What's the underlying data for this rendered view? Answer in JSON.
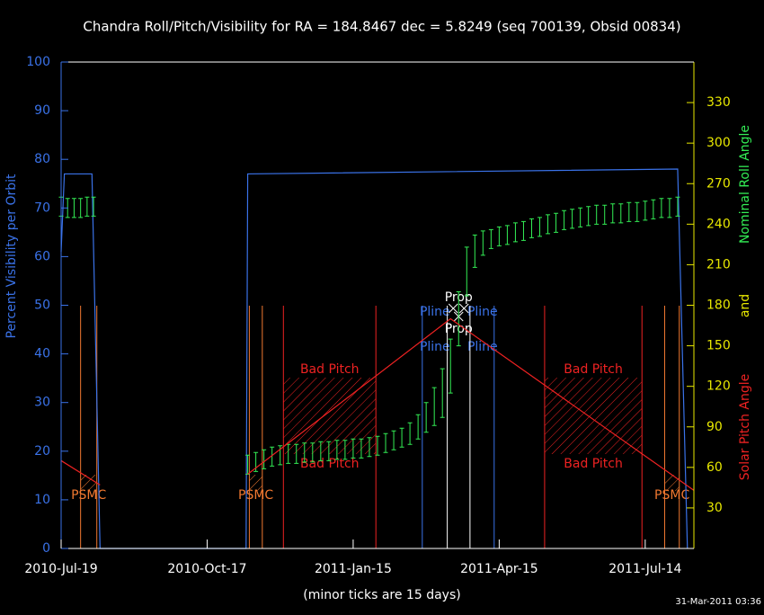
{
  "chart_data": {
    "type": "line",
    "title": "Chandra Roll/Pitch/Visibility for RA = 184.8467 dec = 5.8249 (seq 700139, Obsid 00834)",
    "ylabel": "Percent Visibility per Orbit",
    "y2label_joiner": "and",
    "note": "(minor ticks are 15 days)",
    "timestamp": "31-Mar-2011 03:36",
    "xlim": [
      0,
      390
    ],
    "xticks": [
      {
        "value": 0,
        "label": "2010-Jul-19"
      },
      {
        "value": 90,
        "label": "2010-Oct-17"
      },
      {
        "value": 180,
        "label": "2011-Jan-15"
      },
      {
        "value": 270,
        "label": "2011-Apr-15"
      },
      {
        "value": 360,
        "label": "2011-Jul-14"
      }
    ],
    "ylim": [
      0,
      100
    ],
    "yticks": [
      0,
      10,
      20,
      30,
      40,
      50,
      60,
      70,
      80,
      90,
      100
    ],
    "y2lim": [
      0,
      360
    ],
    "y2ticks": [
      30,
      60,
      90,
      120,
      150,
      180,
      210,
      240,
      270,
      300,
      330
    ],
    "series": [
      {
        "name": "Percent Visibility per Orbit",
        "color": "#3a72e8",
        "axis": "y",
        "x": [
          0,
          2,
          19,
          24,
          114,
          115,
          380,
          386
        ],
        "values": [
          61,
          77,
          77,
          0,
          0,
          77,
          78,
          0
        ]
      },
      {
        "name": "Nominal Roll Angle",
        "color": "#33ee55",
        "axis": "y2",
        "x": [
          0,
          4,
          8,
          12,
          16,
          20,
          115,
          120,
          125,
          130,
          135,
          140,
          145,
          150,
          155,
          160,
          165,
          170,
          175,
          180,
          185,
          190,
          195,
          200,
          205,
          210,
          215,
          220,
          225,
          230,
          235,
          240,
          245,
          250,
          255,
          260,
          265,
          270,
          275,
          280,
          285,
          290,
          295,
          300,
          305,
          310,
          315,
          320,
          325,
          330,
          335,
          340,
          345,
          350,
          355,
          360,
          365,
          370,
          375,
          380
        ],
        "values": [
          253,
          252,
          252,
          252,
          253,
          253,
          62,
          64,
          66,
          68,
          69,
          70,
          70,
          71,
          71,
          72,
          72,
          73,
          73,
          74,
          74,
          75,
          76,
          78,
          80,
          82,
          85,
          90,
          97,
          105,
          115,
          135,
          170,
          205,
          220,
          226,
          229,
          231,
          232,
          234,
          235,
          237,
          238,
          240,
          241,
          243,
          244,
          245,
          246,
          247,
          247,
          248,
          248,
          249,
          249,
          250,
          251,
          252,
          252,
          253
        ],
        "errors": [
          7,
          7,
          7,
          7,
          7,
          7,
          7,
          7,
          7,
          7,
          7,
          7,
          7,
          7,
          7,
          7,
          7,
          7,
          7,
          7,
          7,
          7,
          7,
          7,
          7,
          7,
          8,
          9,
          11,
          14,
          18,
          20,
          20,
          18,
          12,
          9,
          7,
          7,
          7,
          7,
          7,
          7,
          7,
          7,
          7,
          7,
          7,
          7,
          7,
          7,
          7,
          7,
          7,
          7,
          7,
          7,
          7,
          7,
          7,
          7
        ]
      },
      {
        "name": "Solar Pitch Angle",
        "color": "#ee2222",
        "axis": "y2",
        "x": [
          0,
          24,
          null,
          115,
          240,
          390
        ],
        "values": [
          65,
          47,
          null,
          55,
          170,
          43
        ]
      }
    ],
    "zones": [
      {
        "label": "PSMC",
        "color": "#f07830",
        "x": [
          12,
          22
        ],
        "hatch": true
      },
      {
        "label": "PSMC",
        "color": "#f07830",
        "x": [
          116,
          124
        ],
        "hatch": true
      },
      {
        "label": "Bad Pitch",
        "color": "#ee2222",
        "x": [
          137,
          194
        ],
        "hatch": true
      },
      {
        "label": "Pline",
        "color": "#3a72e8",
        "x": [
          222.6,
          266.9
        ],
        "hatch": false
      },
      {
        "label": "Prop",
        "color": "#ffffff",
        "x": [
          238,
          252
        ],
        "hatch": false
      },
      {
        "label": "Bad Pitch",
        "color": "#ee2222",
        "x": [
          298,
          358
        ],
        "hatch": true
      },
      {
        "label": "PSMC",
        "color": "#f07830",
        "x": [
          372,
          381
        ],
        "hatch": true
      }
    ]
  }
}
